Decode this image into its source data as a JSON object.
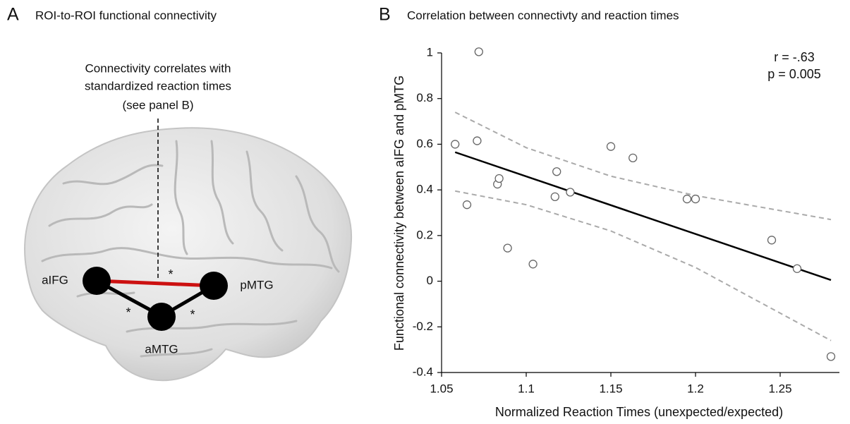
{
  "panel_a": {
    "panel_label": "A",
    "title": "ROI-to-ROI functional connectivity",
    "note_lines": [
      "Connectivity correlates with",
      "standardized reaction times",
      "(see panel B)"
    ],
    "nodes": [
      "aIFG",
      "pMTG",
      "aMTG"
    ],
    "stars": [
      "*",
      "*",
      "*"
    ]
  },
  "chart_data": {
    "type": "scatter",
    "panel_label": "B",
    "title": "Correlation between connectivty and reaction times",
    "x_label": "Normalized Reaction Times (unexpected/expected)",
    "y_label": "Functional connectivity between aIFG and pMTG",
    "annotations": [
      "r = -.63",
      "p = 0.005"
    ],
    "xlim": [
      1.05,
      1.285
    ],
    "ylim": [
      -0.4,
      1
    ],
    "xticks": [
      1.05,
      1.1,
      1.15,
      1.2,
      1.25
    ],
    "yticks": [
      1,
      0.8,
      0.6,
      0.4,
      0.2,
      0,
      -0.2,
      -0.4
    ],
    "points": {
      "color": "#666666",
      "x": [
        1.058,
        1.065,
        1.071,
        1.072,
        1.083,
        1.084,
        1.089,
        1.104,
        1.117,
        1.118,
        1.126,
        1.15,
        1.163,
        1.195,
        1.2,
        1.245,
        1.26,
        1.28
      ],
      "values": [
        0.6,
        0.335,
        0.615,
        1.005,
        0.425,
        0.45,
        0.145,
        0.075,
        0.37,
        0.48,
        0.39,
        0.59,
        0.54,
        0.36,
        0.36,
        0.18,
        0.055,
        -0.33
      ]
    },
    "fit": {
      "color": "#000000",
      "x": [
        1.058,
        1.28
      ],
      "values": [
        0.565,
        0.005
      ]
    },
    "ci_upper": {
      "color": "#aaaaaa",
      "x": [
        1.058,
        1.1,
        1.15,
        1.2,
        1.28
      ],
      "values": [
        0.74,
        0.585,
        0.46,
        0.375,
        0.27
      ]
    },
    "ci_lower": {
      "color": "#aaaaaa",
      "x": [
        1.058,
        1.1,
        1.15,
        1.2,
        1.28
      ],
      "values": [
        0.395,
        0.335,
        0.22,
        0.06,
        -0.26
      ]
    }
  }
}
